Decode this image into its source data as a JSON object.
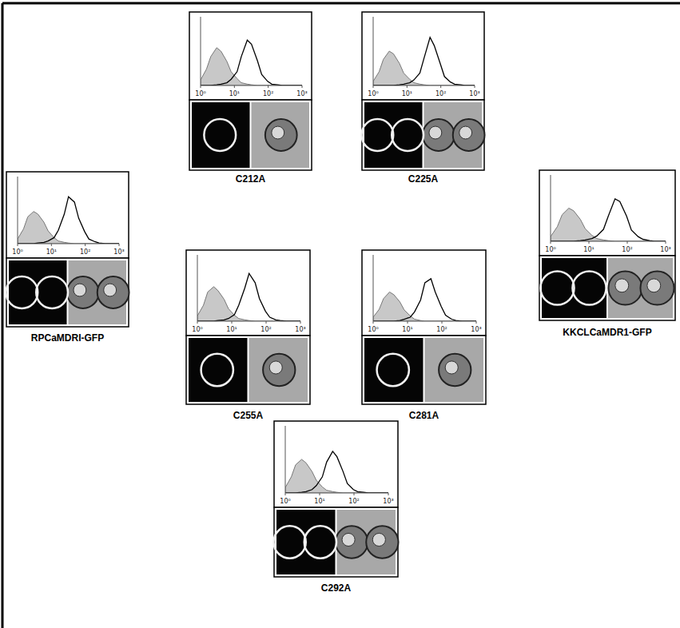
{
  "chart_data": [
    {
      "type": "line",
      "title": "C212A",
      "log": "x",
      "tick_labels": "x",
      "xlim": [
        1,
        1000
      ],
      "ylim": [
        0,
        100
      ],
      "xticks": [
        {
          "value": 1,
          "label": "10⁰"
        },
        {
          "value": 10,
          "label": "10¹"
        },
        {
          "value": 100,
          "label": "10²"
        },
        {
          "value": 1000,
          "label": "10³"
        }
      ],
      "x": [
        1,
        1.5,
        2,
        3,
        4,
        6,
        8,
        12,
        16,
        24,
        32,
        48,
        64,
        96,
        128,
        192,
        256,
        384,
        512,
        768,
        1000
      ],
      "series": [
        {
          "type": "area",
          "color": "#c8c8c8",
          "values": [
            8,
            24,
            42,
            55,
            50,
            35,
            20,
            10,
            4,
            2,
            1,
            0,
            0,
            0,
            0,
            0,
            0,
            0,
            0,
            0,
            0
          ]
        },
        {
          "type": "line",
          "color": "#000000",
          "values": [
            0,
            0,
            0,
            1,
            2,
            4,
            9,
            20,
            42,
            66,
            60,
            36,
            16,
            6,
            2,
            1,
            0,
            0,
            0,
            0,
            0
          ]
        }
      ]
    },
    {
      "type": "line",
      "title": "C225A",
      "log": "x",
      "tick_labels": "x",
      "xlim": [
        1,
        1000
      ],
      "ylim": [
        0,
        100
      ],
      "xticks": [
        {
          "value": 1,
          "label": "10⁰"
        },
        {
          "value": 10,
          "label": "10¹"
        },
        {
          "value": 100,
          "label": "10²"
        },
        {
          "value": 1000,
          "label": "10³"
        }
      ],
      "x": [
        1,
        1.5,
        2,
        3,
        4,
        6,
        8,
        12,
        16,
        24,
        32,
        48,
        64,
        96,
        128,
        192,
        256,
        384,
        512,
        768,
        1000
      ],
      "series": [
        {
          "type": "area",
          "color": "#c8c8c8",
          "values": [
            6,
            20,
            38,
            50,
            46,
            32,
            18,
            9,
            4,
            2,
            1,
            0,
            0,
            0,
            0,
            0,
            0,
            0,
            0,
            0,
            0
          ]
        },
        {
          "type": "line",
          "color": "#000000",
          "values": [
            0,
            0,
            0,
            0,
            0,
            1,
            2,
            4,
            8,
            18,
            40,
            70,
            58,
            32,
            13,
            5,
            2,
            1,
            0,
            0,
            0
          ]
        }
      ]
    },
    {
      "type": "line",
      "title": "RPCaMDRI-GFP",
      "log": "x",
      "tick_labels": "x",
      "xlim": [
        1,
        1000
      ],
      "ylim": [
        0,
        100
      ],
      "xticks": [
        {
          "value": 1,
          "label": "10⁰"
        },
        {
          "value": 10,
          "label": "10¹"
        },
        {
          "value": 100,
          "label": "10²"
        },
        {
          "value": 1000,
          "label": "10³"
        }
      ],
      "x": [
        1,
        1.5,
        2,
        3,
        4,
        6,
        8,
        12,
        16,
        24,
        32,
        48,
        64,
        96,
        128,
        192,
        256,
        384,
        512,
        768,
        1000
      ],
      "series": [
        {
          "type": "area",
          "color": "#c8c8c8",
          "values": [
            7,
            22,
            40,
            48,
            44,
            32,
            19,
            9,
            4,
            2,
            1,
            0,
            0,
            0,
            0,
            0,
            0,
            0,
            0,
            0,
            0
          ]
        },
        {
          "type": "line",
          "color": "#000000",
          "values": [
            0,
            0,
            0,
            0,
            1,
            2,
            4,
            9,
            20,
            44,
            70,
            62,
            38,
            18,
            7,
            3,
            1,
            0,
            0,
            0,
            0
          ]
        }
      ]
    },
    {
      "type": "line",
      "title": "C255A",
      "log": "x",
      "tick_labels": "x",
      "xlim": [
        1,
        1000
      ],
      "ylim": [
        0,
        100
      ],
      "xticks": [
        {
          "value": 1,
          "label": "10⁰"
        },
        {
          "value": 10,
          "label": "10¹"
        },
        {
          "value": 100,
          "label": "10²"
        },
        {
          "value": 1000,
          "label": "10³"
        }
      ],
      "x": [
        1,
        1.5,
        2,
        3,
        4,
        6,
        8,
        12,
        16,
        24,
        32,
        48,
        64,
        96,
        128,
        192,
        256,
        384,
        512,
        768,
        1000
      ],
      "series": [
        {
          "type": "area",
          "color": "#c8c8c8",
          "values": [
            8,
            24,
            44,
            52,
            46,
            33,
            19,
            9,
            4,
            2,
            1,
            0,
            0,
            0,
            0,
            0,
            0,
            0,
            0,
            0,
            0
          ]
        },
        {
          "type": "line",
          "color": "#000000",
          "values": [
            0,
            0,
            0,
            0,
            1,
            2,
            4,
            10,
            24,
            50,
            72,
            58,
            34,
            15,
            6,
            2,
            1,
            0,
            0,
            0,
            0
          ]
        }
      ]
    },
    {
      "type": "line",
      "title": "C281A",
      "log": "x",
      "tick_labels": "x",
      "xlim": [
        1,
        1000
      ],
      "ylim": [
        0,
        100
      ],
      "xticks": [
        {
          "value": 1,
          "label": "10⁰"
        },
        {
          "value": 10,
          "label": "10¹"
        },
        {
          "value": 100,
          "label": "10²"
        },
        {
          "value": 1000,
          "label": "10³"
        }
      ],
      "x": [
        1,
        1.5,
        2,
        3,
        4,
        6,
        8,
        12,
        16,
        24,
        32,
        48,
        64,
        96,
        128,
        192,
        256,
        384,
        512,
        768,
        1000
      ],
      "series": [
        {
          "type": "area",
          "color": "#c8c8c8",
          "values": [
            6,
            18,
            34,
            44,
            40,
            29,
            17,
            8,
            3,
            1,
            0,
            0,
            0,
            0,
            0,
            0,
            0,
            0,
            0,
            0,
            0
          ]
        },
        {
          "type": "line",
          "color": "#000000",
          "values": [
            0,
            0,
            0,
            0,
            0,
            1,
            3,
            6,
            14,
            32,
            58,
            64,
            44,
            22,
            9,
            3,
            1,
            0,
            0,
            0,
            0
          ]
        }
      ]
    },
    {
      "type": "line",
      "title": "KKCLCaMDR1-GFP",
      "log": "x",
      "tick_labels": "x",
      "xlim": [
        1,
        1000
      ],
      "ylim": [
        0,
        100
      ],
      "xticks": [
        {
          "value": 1,
          "label": "10⁰"
        },
        {
          "value": 10,
          "label": "10¹"
        },
        {
          "value": 100,
          "label": "10²"
        },
        {
          "value": 1000,
          "label": "10³"
        }
      ],
      "x": [
        1,
        1.5,
        2,
        3,
        4,
        6,
        8,
        12,
        16,
        24,
        32,
        48,
        64,
        96,
        128,
        192,
        256,
        384,
        512,
        768,
        1000
      ],
      "series": [
        {
          "type": "area",
          "color": "#c8c8c8",
          "values": [
            7,
            22,
            40,
            50,
            46,
            33,
            19,
            9,
            4,
            2,
            1,
            0,
            0,
            0,
            0,
            0,
            0,
            0,
            0,
            0,
            0
          ]
        },
        {
          "type": "line",
          "color": "#000000",
          "values": [
            0,
            0,
            0,
            0,
            0,
            1,
            2,
            4,
            8,
            18,
            38,
            64,
            60,
            38,
            17,
            7,
            3,
            1,
            0,
            0,
            0
          ]
        }
      ]
    },
    {
      "type": "line",
      "title": "C292A",
      "log": "x",
      "tick_labels": "x",
      "xlim": [
        1,
        1000
      ],
      "ylim": [
        0,
        100
      ],
      "xticks": [
        {
          "value": 1,
          "label": "10⁰"
        },
        {
          "value": 10,
          "label": "10¹"
        },
        {
          "value": 100,
          "label": "10²"
        },
        {
          "value": 1000,
          "label": "10³"
        }
      ],
      "x": [
        1,
        1.5,
        2,
        3,
        4,
        6,
        8,
        12,
        16,
        24,
        32,
        48,
        64,
        96,
        128,
        192,
        256,
        384,
        512,
        768,
        1000
      ],
      "series": [
        {
          "type": "area",
          "color": "#c8c8c8",
          "values": [
            8,
            24,
            42,
            50,
            45,
            32,
            19,
            9,
            4,
            2,
            1,
            0,
            0,
            0,
            0,
            0,
            0,
            0,
            0,
            0,
            0
          ]
        },
        {
          "type": "line",
          "color": "#000000",
          "values": [
            0,
            0,
            0,
            1,
            2,
            5,
            11,
            24,
            46,
            62,
            54,
            32,
            14,
            5,
            2,
            1,
            0,
            0,
            0,
            0,
            0
          ]
        }
      ]
    }
  ]
}
